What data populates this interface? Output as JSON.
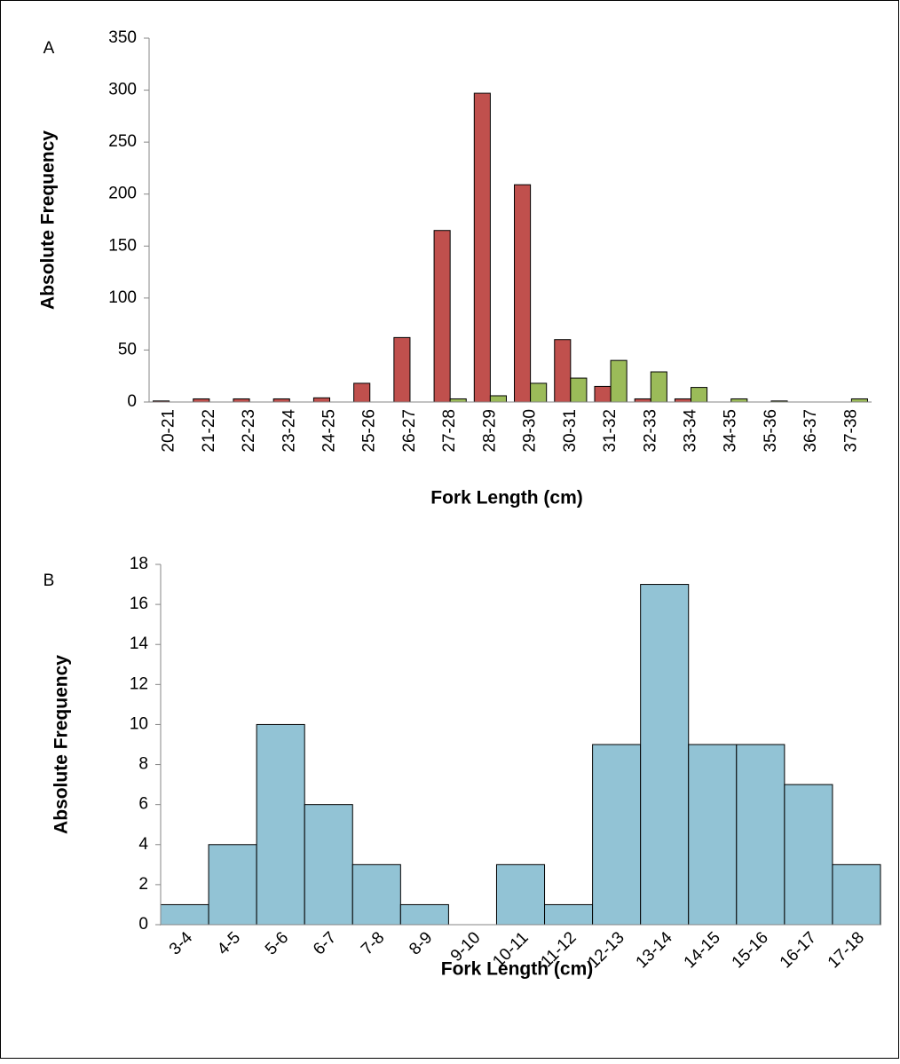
{
  "chart_data": [
    {
      "type": "bar",
      "label": "A",
      "x_label": "Fork Length (cm)",
      "y_label": "Absolute Frequency",
      "categories": [
        "20-21",
        "21-22",
        "22-23",
        "23-24",
        "24-25",
        "25-26",
        "26-27",
        "27-28",
        "28-29",
        "29-30",
        "30-31",
        "31-32",
        "32-33",
        "33-34",
        "34-35",
        "35-36",
        "36-37",
        "37-38"
      ],
      "series": [
        {
          "color": "#c0504d",
          "values": [
            1,
            3,
            3,
            3,
            4,
            18,
            62,
            165,
            297,
            209,
            60,
            15,
            3,
            3,
            0,
            0,
            0,
            0
          ]
        },
        {
          "color": "#9bbb59",
          "values": [
            0,
            0,
            0,
            0,
            0,
            0,
            0,
            3,
            6,
            18,
            23,
            40,
            29,
            14,
            3,
            1,
            0,
            3
          ]
        }
      ],
      "ylim": [
        0,
        350
      ],
      "yticks": [
        0,
        50,
        100,
        150,
        200,
        250,
        300,
        350
      ]
    },
    {
      "type": "bar",
      "label": "B",
      "x_label": "Fork Length (cm)",
      "y_label": "Absolute Frequency",
      "categories": [
        "3-4",
        "4-5",
        "5-6",
        "6-7",
        "7-8",
        "8-9",
        "9-10",
        "10-11",
        "11-12",
        "12-13",
        "13-14",
        "14-15",
        "15-16",
        "16-17",
        "17-18"
      ],
      "series": [
        {
          "color": "#92c3d5",
          "values": [
            1,
            4,
            10,
            6,
            3,
            1,
            0,
            3,
            1,
            9,
            17,
            9,
            9,
            7,
            3
          ]
        }
      ],
      "ylim": [
        0,
        18
      ],
      "yticks": [
        0,
        2,
        4,
        6,
        8,
        10,
        12,
        14,
        16,
        18
      ]
    }
  ]
}
